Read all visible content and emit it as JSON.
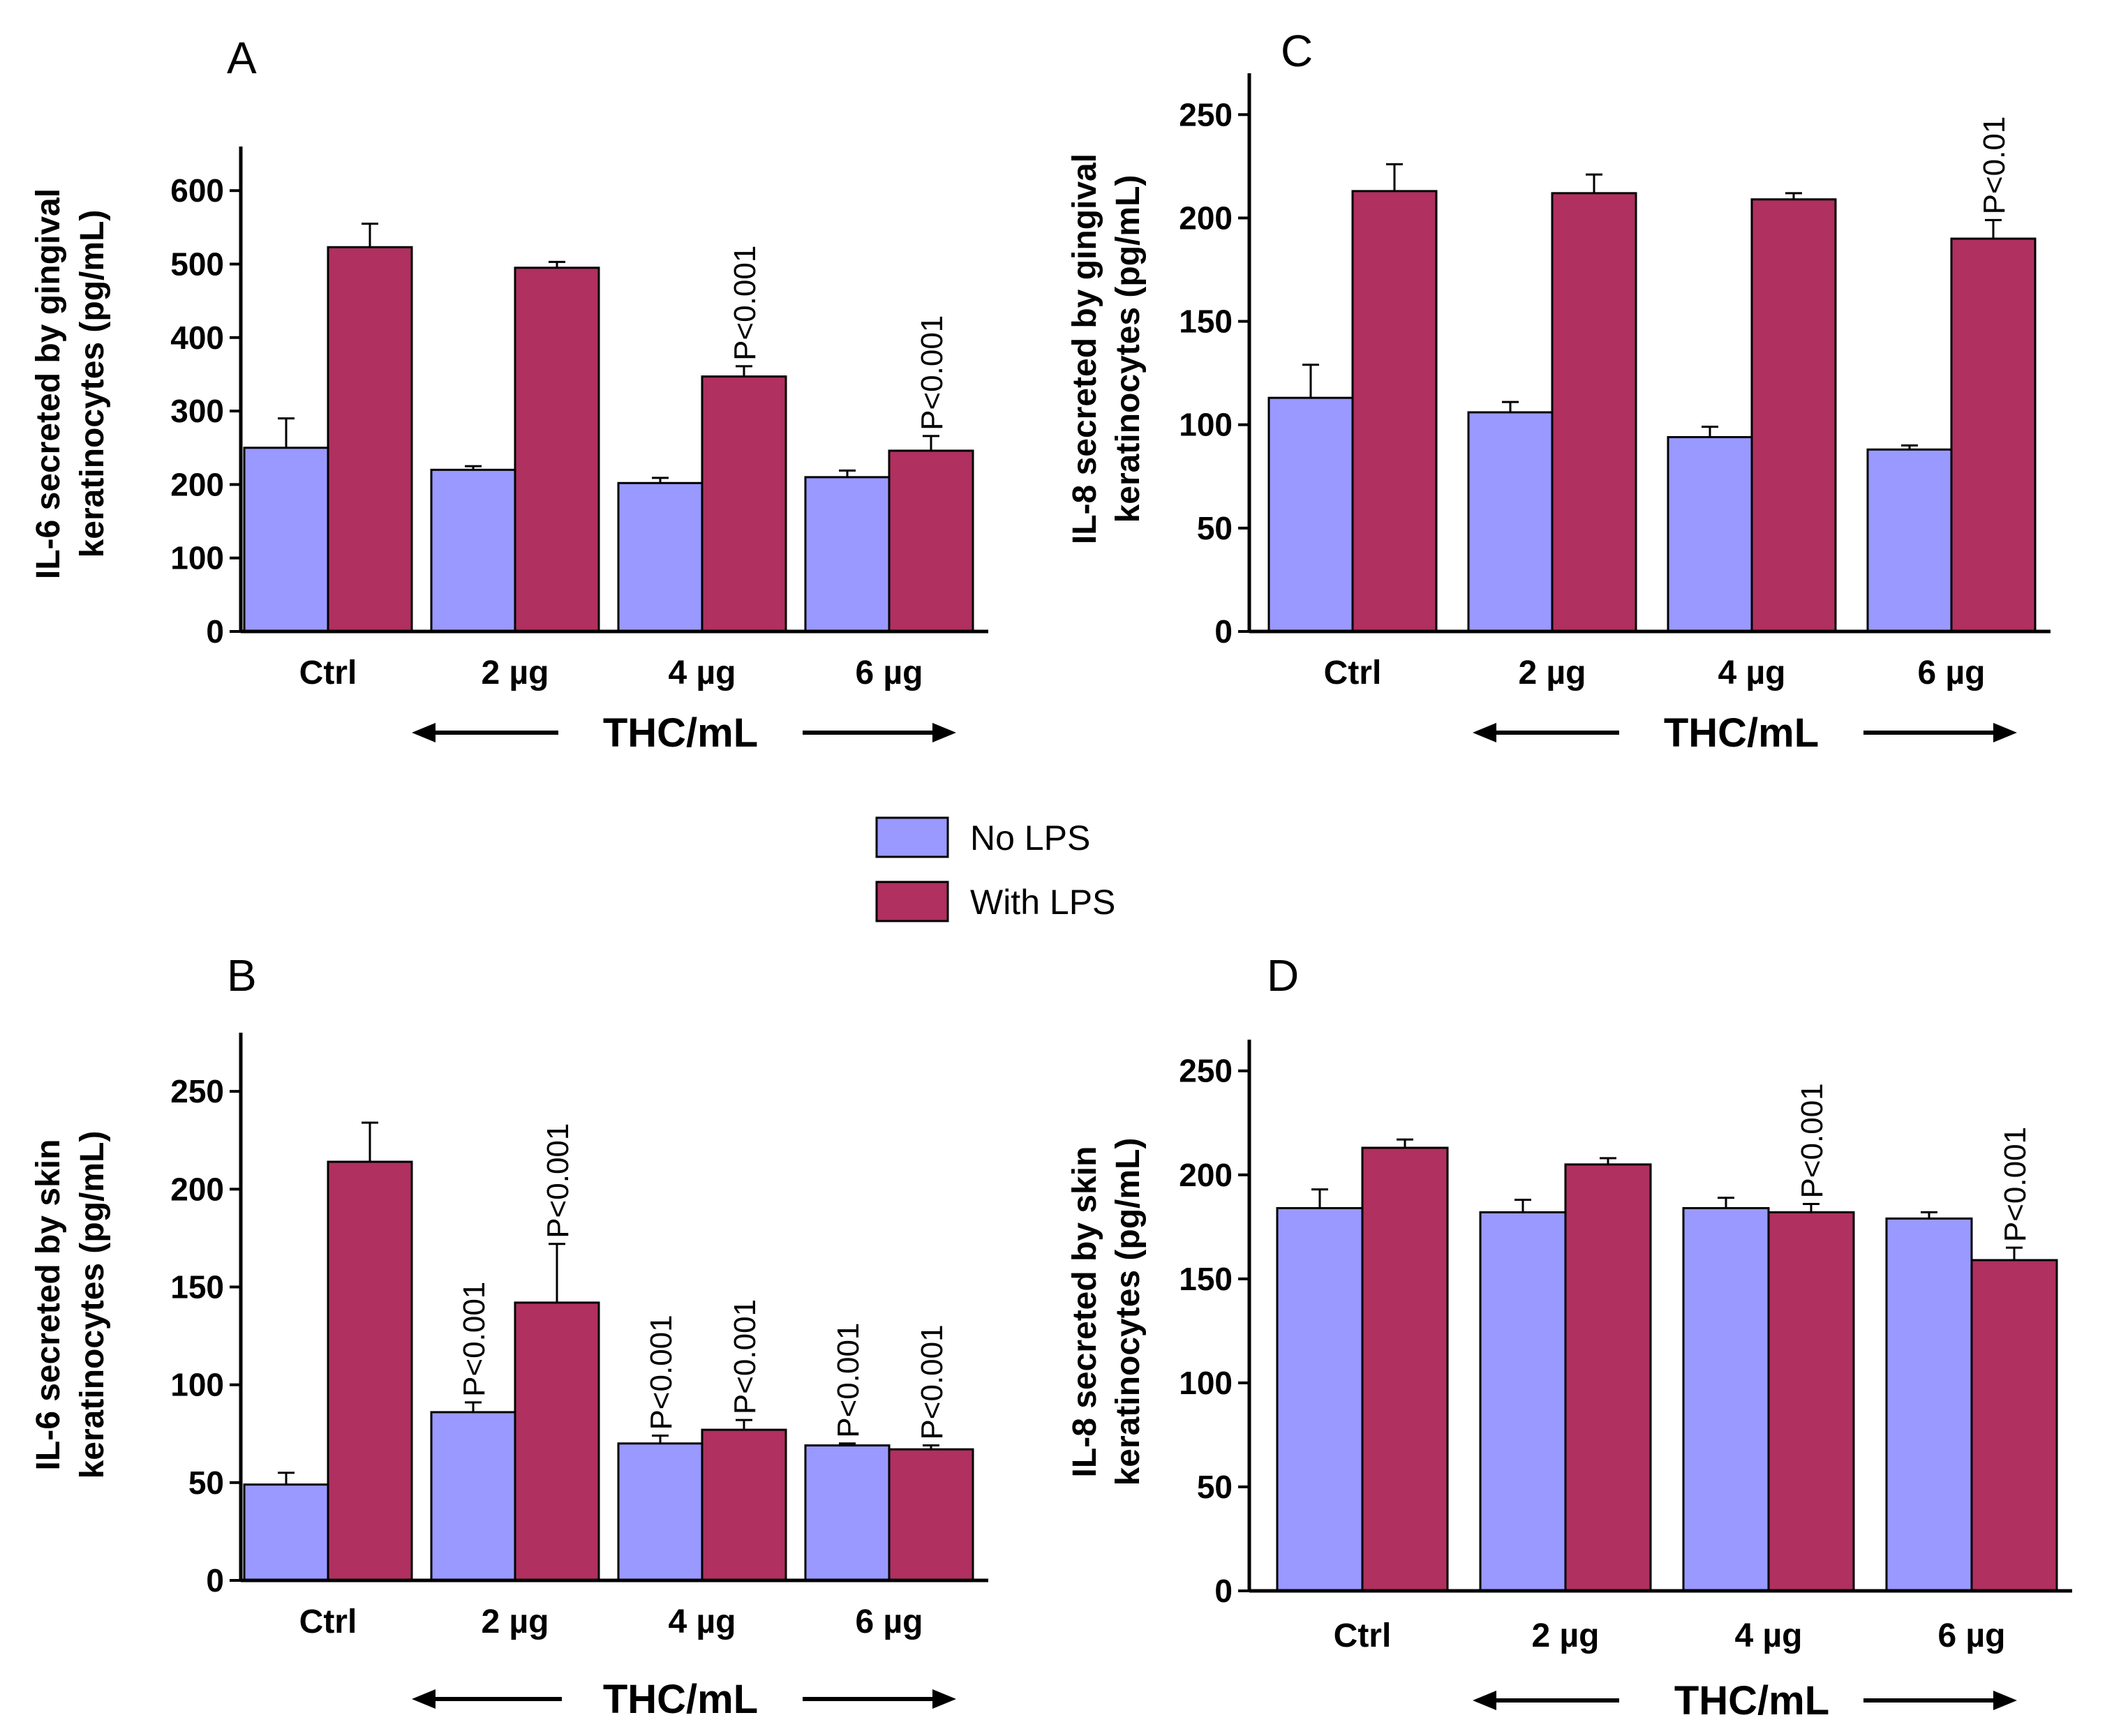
{
  "chart_data": [
    {
      "type": "bar",
      "panel": "A",
      "ylabel_line1": "IL-6 secreted by gingival",
      "ylabel_line2": "keratinocytes (pg/mL)",
      "xlabel": "THC/mL",
      "categories": [
        "Ctrl",
        "2 µg",
        "4 µg",
        "6 µg"
      ],
      "ylim": [
        0,
        660
      ],
      "yticks": [
        0,
        100,
        200,
        300,
        400,
        500,
        600
      ],
      "series": [
        {
          "name": "No LPS",
          "values": [
            250,
            220,
            202,
            210
          ],
          "errors": [
            40,
            5,
            7,
            9
          ],
          "pvalues": [
            "",
            "",
            "",
            ""
          ]
        },
        {
          "name": "With LPS",
          "values": [
            523,
            495,
            347,
            246
          ],
          "errors": [
            32,
            8,
            14,
            20
          ],
          "pvalues": [
            "",
            "",
            "P<0.001",
            "P<0.001"
          ]
        }
      ]
    },
    {
      "type": "bar",
      "panel": "B",
      "ylabel_line1": "IL-6 secreted by skin",
      "ylabel_line2": "keratinocytes (pg/mL)",
      "xlabel": "THC/mL",
      "categories": [
        "Ctrl",
        "2 µg",
        "4 µg",
        "6 µg"
      ],
      "ylim": [
        0,
        280
      ],
      "yticks": [
        0,
        50,
        100,
        150,
        200,
        250
      ],
      "series": [
        {
          "name": "No LPS",
          "values": [
            49,
            86,
            70,
            69
          ],
          "errors": [
            6,
            5,
            4,
            1
          ],
          "pvalues": [
            "",
            "P<0.001",
            "P<0.001",
            "P<0.001"
          ]
        },
        {
          "name": "With LPS",
          "values": [
            214,
            142,
            77,
            67
          ],
          "errors": [
            20,
            30,
            5,
            2
          ],
          "pvalues": [
            "",
            "P<0.001",
            "P<0.001",
            "P<0.001"
          ]
        }
      ]
    },
    {
      "type": "bar",
      "panel": "C",
      "ylabel_line1": "IL-8 secreted by gingival",
      "ylabel_line2": "keratinocytes (pg/mL)",
      "xlabel": "THC/mL",
      "categories": [
        "Ctrl",
        "2 µg",
        "4 µg",
        "6 µg"
      ],
      "ylim": [
        0,
        270
      ],
      "yticks": [
        0,
        50,
        100,
        150,
        200,
        250
      ],
      "series": [
        {
          "name": "No LPS",
          "values": [
            113,
            106,
            94,
            88
          ],
          "errors": [
            16,
            5,
            5,
            2
          ],
          "pvalues": [
            "",
            "",
            "",
            ""
          ]
        },
        {
          "name": "With LPS",
          "values": [
            213,
            212,
            209,
            190
          ],
          "errors": [
            13,
            9,
            3,
            9
          ],
          "pvalues": [
            "",
            "",
            "",
            "P<0.01"
          ]
        }
      ]
    },
    {
      "type": "bar",
      "panel": "D",
      "ylabel_line1": "IL-8 secreted by skin",
      "ylabel_line2": "keratinocytes (pg/mL)",
      "xlabel": "THC/mL",
      "categories": [
        "Ctrl",
        "2 µg",
        "4 µg",
        "6 µg"
      ],
      "ylim": [
        0,
        265
      ],
      "yticks": [
        0,
        50,
        100,
        150,
        200,
        250
      ],
      "series": [
        {
          "name": "No LPS",
          "values": [
            184,
            182,
            184,
            179
          ],
          "errors": [
            9,
            6,
            5,
            3
          ],
          "pvalues": [
            "",
            "",
            "",
            ""
          ]
        },
        {
          "name": "With LPS",
          "values": [
            213,
            205,
            182,
            159
          ],
          "errors": [
            4,
            3,
            4,
            6
          ],
          "pvalues": [
            "",
            "",
            "P<0.001",
            "P<0.001"
          ]
        }
      ]
    }
  ],
  "legend": {
    "items": [
      {
        "label": "No LPS",
        "color": "#9999ff"
      },
      {
        "label": "With LPS",
        "color": "#b03060"
      }
    ]
  },
  "colors": {
    "no_lps": "#9999ff",
    "with_lps": "#b03060",
    "axis": "#000000"
  }
}
